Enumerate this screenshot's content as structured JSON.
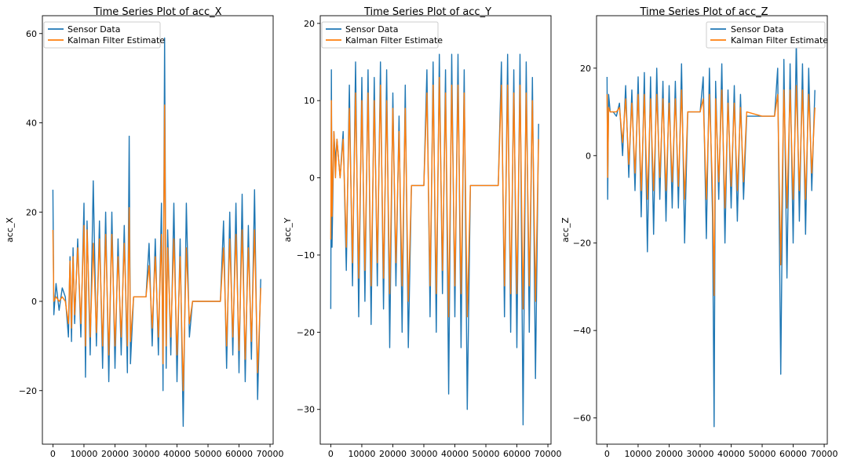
{
  "figure": {
    "background": "#ffffff"
  },
  "series_colors": {
    "Sensor Data": "#1f77b4",
    "Kalman Filter Estimate": "#ff7f0e"
  },
  "chart_data": [
    {
      "type": "line",
      "title": "Time Series Plot of acc_X",
      "xlabel": "",
      "ylabel": "acc_X",
      "xlim": [
        -3400,
        71000
      ],
      "ylim": [
        -32,
        64
      ],
      "xticks": [
        0,
        10000,
        20000,
        30000,
        40000,
        50000,
        60000,
        70000
      ],
      "yticks": [
        -20,
        0,
        20,
        40,
        60
      ],
      "legend_position": "top-left",
      "grid": false,
      "series": [
        {
          "name": "Sensor Data",
          "color": "#1f77b4",
          "x": [
            0,
            300,
            1000,
            2000,
            3000,
            4000,
            5000,
            5500,
            6000,
            6500,
            7000,
            8000,
            9000,
            10000,
            10500,
            11000,
            12000,
            13000,
            14000,
            15000,
            16000,
            17000,
            18000,
            19000,
            20000,
            21000,
            22000,
            23000,
            24000,
            24600,
            25000,
            26000,
            27000,
            28000,
            29000,
            30000,
            31000,
            32000,
            33000,
            34000,
            35000,
            35500,
            36000,
            36500,
            37000,
            38000,
            39000,
            40000,
            41000,
            42000,
            43000,
            44000,
            45000,
            48000,
            50000,
            52000,
            54000,
            55000,
            56000,
            57000,
            58000,
            59000,
            60000,
            61000,
            62000,
            63000,
            64000,
            65000,
            66000,
            67000
          ],
          "y": [
            25,
            -3,
            4,
            -2,
            3,
            1,
            -8,
            10,
            -9,
            12,
            -5,
            14,
            -8,
            22,
            -17,
            18,
            -12,
            27,
            -10,
            18,
            -15,
            20,
            -18,
            20,
            -15,
            14,
            -12,
            17,
            -16,
            37,
            -14,
            1,
            1,
            1,
            1,
            1,
            13,
            -10,
            14,
            -12,
            22,
            -20,
            59,
            -15,
            16,
            -12,
            22,
            -18,
            14,
            -28,
            22,
            -8,
            0,
            0,
            0,
            0,
            0,
            18,
            -15,
            20,
            -12,
            22,
            -16,
            24,
            -18,
            17,
            -13,
            25,
            -22,
            5
          ]
        },
        {
          "name": "Kalman Filter Estimate",
          "color": "#ff7f0e",
          "x": [
            0,
            300,
            1000,
            2000,
            3000,
            4000,
            5000,
            5500,
            6000,
            6500,
            7000,
            8000,
            9000,
            10000,
            10500,
            11000,
            12000,
            13000,
            14000,
            15000,
            16000,
            17000,
            18000,
            19000,
            20000,
            21000,
            22000,
            23000,
            24000,
            24600,
            25000,
            26000,
            27000,
            28000,
            29000,
            30000,
            31000,
            32000,
            33000,
            34000,
            35000,
            35500,
            36000,
            36500,
            37000,
            38000,
            39000,
            40000,
            41000,
            42000,
            43000,
            44000,
            45000,
            48000,
            50000,
            52000,
            54000,
            55000,
            56000,
            57000,
            58000,
            59000,
            60000,
            61000,
            62000,
            63000,
            64000,
            65000,
            66000,
            67000
          ],
          "y": [
            16,
            0,
            1,
            0,
            1,
            0,
            -5,
            9,
            -6,
            10,
            -3,
            12,
            -5,
            17,
            -10,
            16,
            -8,
            13,
            -7,
            14,
            -10,
            15,
            -12,
            15,
            -10,
            10,
            -8,
            13,
            -10,
            21,
            -9,
            1,
            1,
            1,
            1,
            1,
            8,
            -6,
            10,
            -8,
            15,
            -14,
            44,
            -10,
            12,
            -8,
            14,
            -12,
            10,
            -20,
            12,
            -5,
            0,
            0,
            0,
            0,
            0,
            12,
            -10,
            14,
            -8,
            15,
            -11,
            16,
            -13,
            12,
            -9,
            16,
            -16,
            3
          ]
        }
      ]
    },
    {
      "type": "line",
      "title": "Time Series Plot of acc_Y",
      "xlabel": "",
      "ylabel": "acc_Y",
      "xlim": [
        -3400,
        71000
      ],
      "ylim": [
        -34.5,
        21
      ],
      "xticks": [
        0,
        10000,
        20000,
        30000,
        40000,
        50000,
        60000,
        70000
      ],
      "yticks": [
        -30,
        -20,
        -10,
        0,
        10,
        20
      ],
      "legend_position": "top-left",
      "grid": false,
      "series": [
        {
          "name": "Sensor Data",
          "color": "#1f77b4",
          "x": [
            0,
            200,
            400,
            1000,
            1500,
            2000,
            3000,
            4000,
            5000,
            6000,
            7000,
            8000,
            9000,
            10000,
            11000,
            12000,
            13000,
            14000,
            15000,
            16000,
            17000,
            18000,
            19000,
            20000,
            21000,
            22000,
            23000,
            24000,
            25000,
            26000,
            28000,
            30000,
            31000,
            32000,
            33000,
            34000,
            35000,
            36000,
            37000,
            38000,
            39000,
            40000,
            41000,
            42000,
            43000,
            44000,
            45000,
            50000,
            54000,
            55000,
            56000,
            57000,
            58000,
            59000,
            60000,
            61000,
            62000,
            63000,
            64000,
            65000,
            66000,
            67000
          ],
          "y": [
            -17,
            14,
            -9,
            6,
            2,
            5,
            0,
            6,
            -12,
            12,
            -14,
            15,
            -18,
            13,
            -16,
            14,
            -19,
            13,
            -14,
            15,
            -17,
            14,
            -22,
            11,
            -14,
            8,
            -20,
            12,
            -22,
            -1,
            -1,
            -1,
            14,
            -18,
            15,
            -20,
            16,
            -15,
            14,
            -28,
            16,
            -18,
            16,
            -22,
            14,
            -30,
            -1,
            -1,
            -1,
            15,
            -18,
            16,
            -20,
            14,
            -22,
            16,
            -32,
            15,
            -20,
            13,
            -26,
            7
          ]
        },
        {
          "name": "Kalman Filter Estimate",
          "color": "#ff7f0e",
          "x": [
            0,
            200,
            400,
            1000,
            1500,
            2000,
            3000,
            4000,
            5000,
            6000,
            7000,
            8000,
            9000,
            10000,
            11000,
            12000,
            13000,
            14000,
            15000,
            16000,
            17000,
            18000,
            19000,
            20000,
            21000,
            22000,
            23000,
            24000,
            25000,
            26000,
            28000,
            30000,
            31000,
            32000,
            33000,
            34000,
            35000,
            36000,
            37000,
            38000,
            39000,
            40000,
            41000,
            42000,
            43000,
            44000,
            45000,
            50000,
            54000,
            55000,
            56000,
            57000,
            58000,
            59000,
            60000,
            61000,
            62000,
            63000,
            64000,
            65000,
            66000,
            67000
          ],
          "y": [
            -8,
            10,
            -5,
            6,
            0,
            5,
            0,
            5,
            -9,
            9,
            -11,
            11,
            -13,
            10,
            -12,
            11,
            -14,
            10,
            -11,
            12,
            -13,
            10,
            -15,
            9,
            -11,
            6,
            -14,
            9,
            -16,
            -1,
            -1,
            -1,
            11,
            -14,
            12,
            -15,
            13,
            -12,
            11,
            -18,
            12,
            -14,
            12,
            -15,
            11,
            -18,
            -1,
            -1,
            -1,
            12,
            -14,
            12,
            -15,
            11,
            -15,
            12,
            -17,
            11,
            -14,
            10,
            -16,
            5
          ]
        }
      ]
    },
    {
      "type": "line",
      "title": "Time Series Plot of acc_Z",
      "xlabel": "",
      "ylabel": "acc_Z",
      "xlim": [
        -3400,
        71000
      ],
      "ylim": [
        -66,
        32
      ],
      "xticks": [
        0,
        10000,
        20000,
        30000,
        40000,
        50000,
        60000,
        70000
      ],
      "yticks": [
        -60,
        -40,
        -20,
        0,
        20
      ],
      "legend_position": "top-right",
      "grid": false,
      "series": [
        {
          "name": "Sensor Data",
          "color": "#1f77b4",
          "x": [
            0,
            200,
            500,
            1000,
            2000,
            3000,
            4000,
            5000,
            6000,
            7000,
            8000,
            9000,
            10000,
            11000,
            12000,
            13000,
            14000,
            15000,
            16000,
            17000,
            18000,
            19000,
            20000,
            21000,
            22000,
            23000,
            24000,
            25000,
            26000,
            28000,
            30000,
            31000,
            32000,
            33000,
            34000,
            34500,
            35000,
            36000,
            37000,
            38000,
            39000,
            40000,
            41000,
            42000,
            43000,
            44000,
            45000,
            50000,
            54000,
            55000,
            56000,
            57000,
            58000,
            59000,
            60000,
            61000,
            62000,
            63000,
            64000,
            65000,
            66000,
            67000
          ],
          "y": [
            18,
            -10,
            14,
            10,
            10,
            9,
            12,
            0,
            16,
            -5,
            15,
            -8,
            18,
            -14,
            19,
            -22,
            18,
            -18,
            20,
            -10,
            17,
            -15,
            16,
            -12,
            17,
            -12,
            21,
            -20,
            10,
            10,
            10,
            18,
            -19,
            20,
            -14,
            -62,
            17,
            -10,
            21,
            -20,
            15,
            -12,
            16,
            -15,
            14,
            -10,
            9,
            9,
            9,
            20,
            -50,
            22,
            -28,
            21,
            -20,
            26,
            -15,
            21,
            -18,
            20,
            -8,
            15
          ]
        },
        {
          "name": "Kalman Filter Estimate",
          "color": "#ff7f0e",
          "x": [
            0,
            200,
            500,
            1000,
            2000,
            3000,
            4000,
            5000,
            6000,
            7000,
            8000,
            9000,
            10000,
            11000,
            12000,
            13000,
            14000,
            15000,
            16000,
            17000,
            18000,
            19000,
            20000,
            21000,
            22000,
            23000,
            24000,
            25000,
            26000,
            28000,
            30000,
            31000,
            32000,
            33000,
            34000,
            34500,
            35000,
            36000,
            37000,
            38000,
            39000,
            40000,
            41000,
            42000,
            43000,
            44000,
            45000,
            50000,
            54000,
            55000,
            56000,
            57000,
            58000,
            59000,
            60000,
            61000,
            62000,
            63000,
            64000,
            65000,
            66000,
            67000
          ],
          "y": [
            14,
            -5,
            11,
            10,
            10,
            10,
            11,
            3,
            13,
            -2,
            12,
            -4,
            14,
            -8,
            14,
            -10,
            13,
            -8,
            14,
            -5,
            13,
            -8,
            12,
            -6,
            13,
            -7,
            15,
            -10,
            10,
            10,
            10,
            13,
            -10,
            14,
            -8,
            -32,
            13,
            -6,
            15,
            -12,
            12,
            -7,
            12,
            -8,
            11,
            -6,
            10,
            9,
            9,
            14,
            -25,
            15,
            -12,
            15,
            -10,
            16,
            -8,
            15,
            -10,
            14,
            -4,
            11
          ]
        }
      ]
    }
  ]
}
